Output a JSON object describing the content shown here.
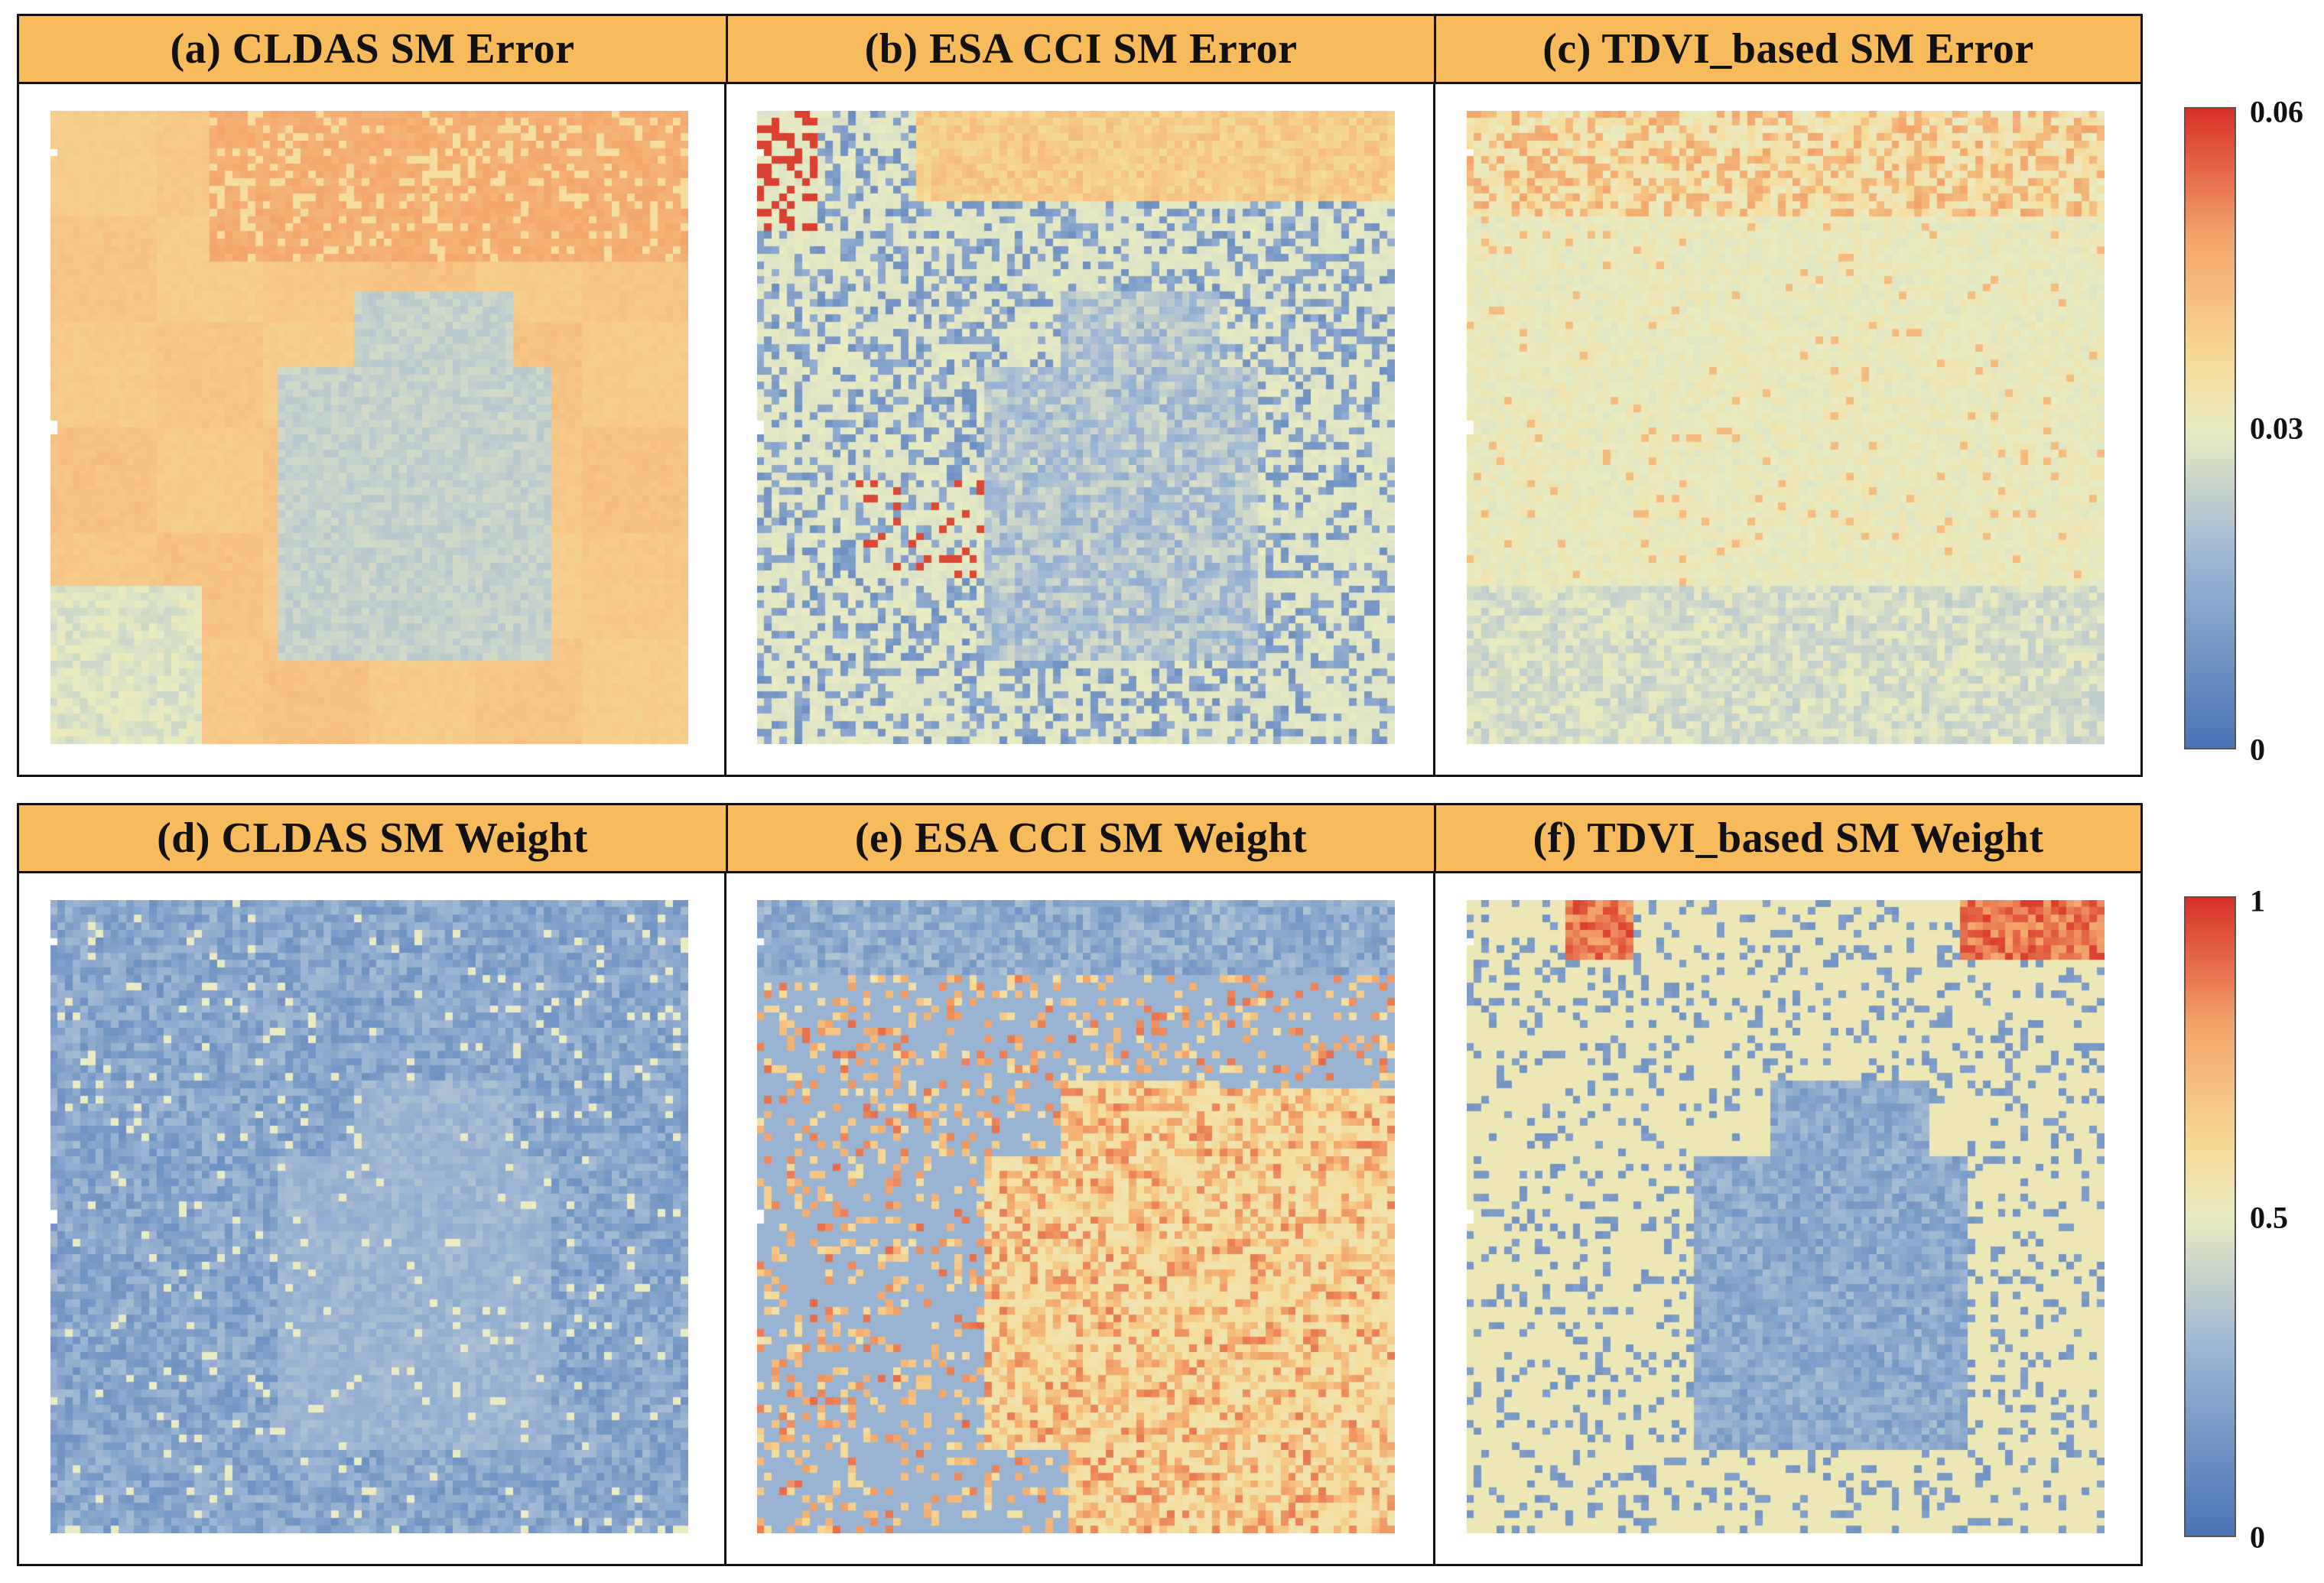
{
  "panels": [
    {
      "id": "a",
      "title": "(a)  CLDAS SM Error"
    },
    {
      "id": "b",
      "title": "(b)  ESA CCI SM Error"
    },
    {
      "id": "c",
      "title": "(c)  TDVI_based SM Error"
    },
    {
      "id": "d",
      "title": "(d)  CLDAS SM Weight"
    },
    {
      "id": "e",
      "title": "(e)  ESA CCI SM Weight"
    },
    {
      "id": "f",
      "title": "(f)  TDVI_based SM Weight"
    }
  ],
  "colorbars": {
    "error": {
      "max": "0.06",
      "mid": "0.03",
      "min": "0"
    },
    "weight": {
      "max": "1",
      "mid": "0.5",
      "min": "0"
    }
  },
  "colors": {
    "header_bg": "#f8bb5b",
    "scale": [
      "#4a74b5",
      "#9fb7d4",
      "#e9ecc2",
      "#f7d893",
      "#f3a46b",
      "#d73027"
    ]
  }
}
